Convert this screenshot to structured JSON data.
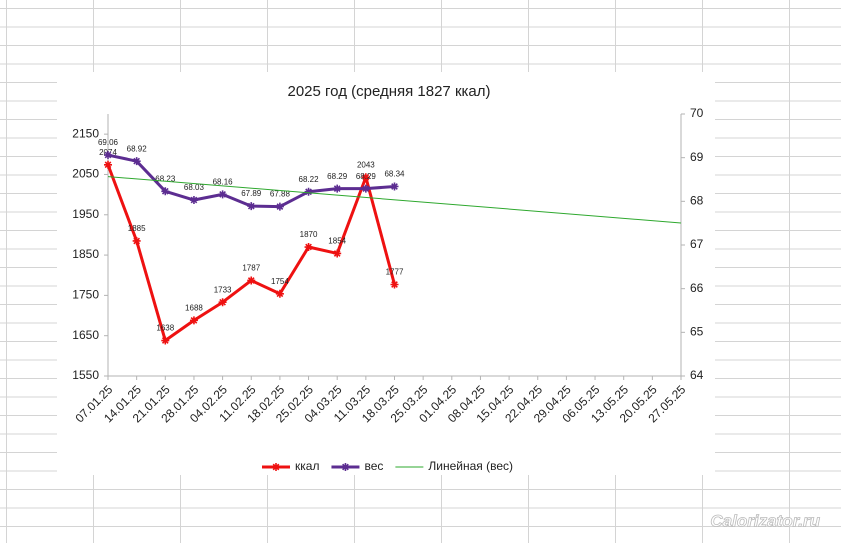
{
  "chart_data": {
    "type": "line",
    "title": "2025 год (средняя 1827 ккал)",
    "categories": [
      "07.01.25",
      "14.01.25",
      "21.01.25",
      "28.01.25",
      "04.02.25",
      "11.02.25",
      "18.02.25",
      "25.02.25",
      "04.03.25",
      "11.03.25",
      "18.03.25",
      "25.03.25",
      "01.04.25",
      "08.04.25",
      "15.04.25",
      "22.04.25",
      "29.04.25",
      "06.05.25",
      "13.05.25",
      "20.05.25",
      "27.05.25"
    ],
    "series": [
      {
        "name": "ккал",
        "color": "#ee1111",
        "values": [
          2074,
          1885,
          1638,
          1688,
          1733,
          1787,
          1754,
          1870,
          1854,
          2043,
          1777,
          null,
          null,
          null,
          null,
          null,
          null,
          null,
          null,
          null,
          null
        ]
      },
      {
        "name": "вес",
        "color": "#5c2d91",
        "axis": "y2",
        "values": [
          69.06,
          68.92,
          68.23,
          68.03,
          68.16,
          67.89,
          67.88,
          68.22,
          68.29,
          68.29,
          68.34,
          null,
          null,
          null,
          null,
          null,
          null,
          null,
          null,
          null,
          null
        ]
      },
      {
        "name": "Линейная (вес)",
        "color": "#2ea82e",
        "axis": "y2",
        "trend": "linear",
        "of": 1
      }
    ],
    "ylim": [
      1550,
      2200
    ],
    "yticks": [
      1550,
      1650,
      1750,
      1850,
      1950,
      2050,
      2150
    ],
    "y2lim": [
      64,
      70
    ],
    "y2ticks": [
      64,
      65,
      66,
      67,
      68,
      69,
      70
    ],
    "grid": false,
    "legend": "bottom"
  },
  "watermark": "Calorizator.ru"
}
